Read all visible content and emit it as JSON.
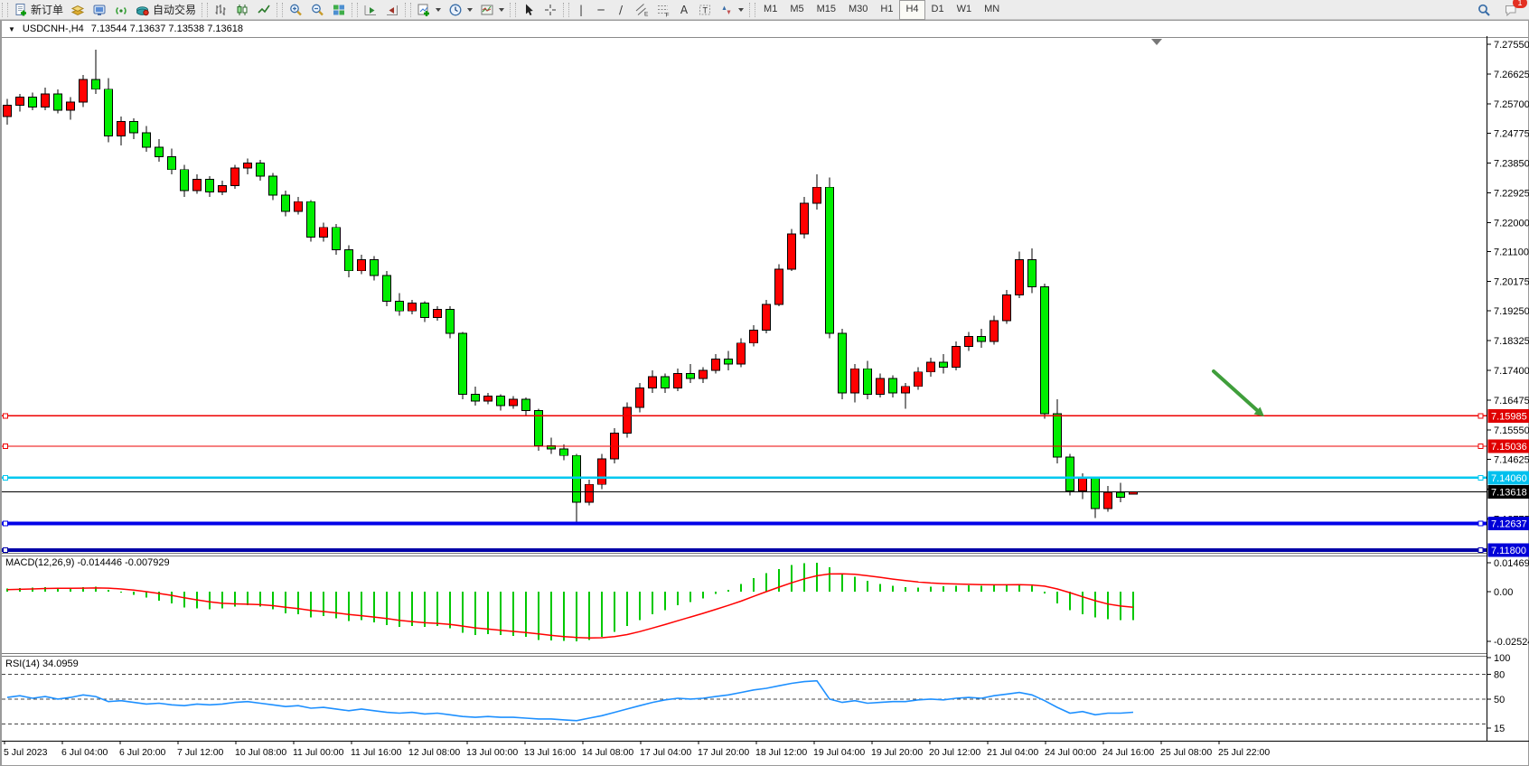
{
  "toolbar": {
    "groups": [
      {
        "items": [
          {
            "name": "new-order",
            "icon": "new-order",
            "label": "新订单"
          },
          {
            "name": "profiles",
            "icon": "profiles"
          },
          {
            "name": "terminal",
            "icon": "terminal"
          },
          {
            "name": "signals",
            "icon": "signals"
          },
          {
            "name": "autotrading",
            "icon": "autotrading",
            "label": "自动交易"
          }
        ]
      },
      {
        "items": [
          {
            "name": "bar-chart-mode",
            "icon": "bars"
          },
          {
            "name": "candlestick-mode",
            "icon": "candles"
          },
          {
            "name": "line-chart-mode",
            "icon": "linechart"
          }
        ]
      },
      {
        "items": [
          {
            "name": "zoom-in",
            "icon": "zoom-in"
          },
          {
            "name": "zoom-out",
            "icon": "zoom-out"
          },
          {
            "name": "tile-windows",
            "icon": "tile"
          }
        ]
      },
      {
        "items": [
          {
            "name": "auto-scroll",
            "icon": "autoscroll"
          },
          {
            "name": "chart-shift",
            "icon": "chartshift"
          }
        ]
      },
      {
        "items": [
          {
            "name": "new-chart",
            "icon": "new-chart",
            "caret": true
          },
          {
            "name": "periods",
            "icon": "clock",
            "caret": true
          },
          {
            "name": "templates",
            "icon": "template",
            "caret": true
          }
        ]
      },
      {
        "items": [
          {
            "name": "cursor",
            "icon": "cursor"
          },
          {
            "name": "crosshair",
            "icon": "crosshair"
          }
        ]
      },
      {
        "items": [
          {
            "name": "vertical-line",
            "glyph": "|"
          },
          {
            "name": "horizontal-line",
            "glyph": "─"
          },
          {
            "name": "trendline",
            "glyph": "/"
          },
          {
            "name": "equidistant-channel",
            "icon": "channel"
          },
          {
            "name": "fibonacci",
            "icon": "fibo"
          },
          {
            "name": "text",
            "glyph": "A"
          },
          {
            "name": "text-label",
            "icon": "label-t"
          },
          {
            "name": "arrows-shapes",
            "icon": "shapes",
            "caret": true
          }
        ]
      }
    ],
    "timeframes": [
      "M1",
      "M5",
      "M15",
      "M30",
      "H1",
      "H4",
      "D1",
      "W1",
      "MN"
    ],
    "active_timeframe": "H4",
    "right_buttons": [
      {
        "name": "search",
        "icon": "search"
      },
      {
        "name": "notifications",
        "icon": "chat",
        "badge": "1"
      }
    ]
  },
  "chart": {
    "title": {
      "symbol": "USDCNH-,H4",
      "ohlc": "7.13544 7.13637 7.13538 7.13618"
    }
  },
  "chart_data": {
    "type": "candlestick",
    "symbol": "USDCNH-,H4",
    "timeframe": "H4",
    "bull_color": "#ff0000",
    "bear_color": "#00ee00",
    "wick_color": "#000000",
    "ylim": [
      7.1172,
      7.2778
    ],
    "price_ticks": [
      "7.27550",
      "7.26625",
      "7.25700",
      "7.24775",
      "7.23850",
      "7.22925",
      "7.22000",
      "7.21100",
      "7.20175",
      "7.19250",
      "7.18325",
      "7.17400",
      "7.16475",
      "7.15550",
      "7.14625",
      "7.13700",
      "7.12775"
    ],
    "time_labels": [
      "5 Jul 2023",
      "6 Jul 04:00",
      "6 Jul 20:00",
      "7 Jul 12:00",
      "10 Jul 08:00",
      "11 Jul 00:00",
      "11 Jul 16:00",
      "12 Jul 08:00",
      "13 Jul 00:00",
      "13 Jul 16:00",
      "14 Jul 08:00",
      "17 Jul 04:00",
      "17 Jul 20:00",
      "18 Jul 12:00",
      "19 Jul 04:00",
      "19 Jul 20:00",
      "20 Jul 12:00",
      "21 Jul 04:00",
      "24 Jul 00:00",
      "24 Jul 16:00",
      "25 Jul 08:00",
      "25 Jul 22:00"
    ],
    "candles": [
      [
        7.253,
        7.2585,
        7.2505,
        7.2565
      ],
      [
        7.2565,
        7.26,
        7.2545,
        7.259
      ],
      [
        7.259,
        7.2605,
        7.255,
        7.256
      ],
      [
        7.256,
        7.262,
        7.255,
        7.26
      ],
      [
        7.26,
        7.2615,
        7.254,
        7.255
      ],
      [
        7.255,
        7.259,
        7.252,
        7.2575
      ],
      [
        7.2575,
        7.266,
        7.256,
        7.2645
      ],
      [
        7.2645,
        7.2738,
        7.26,
        7.2615
      ],
      [
        7.2615,
        7.265,
        7.245,
        7.247
      ],
      [
        7.247,
        7.253,
        7.244,
        7.2515
      ],
      [
        7.2515,
        7.2525,
        7.246,
        7.248
      ],
      [
        7.248,
        7.25,
        7.242,
        7.2435
      ],
      [
        7.2435,
        7.246,
        7.239,
        7.2405
      ],
      [
        7.2405,
        7.243,
        7.235,
        7.2365
      ],
      [
        7.2365,
        7.238,
        7.228,
        7.23
      ],
      [
        7.23,
        7.235,
        7.229,
        7.2335
      ],
      [
        7.2335,
        7.2345,
        7.228,
        7.2295
      ],
      [
        7.2295,
        7.233,
        7.2285,
        7.2315
      ],
      [
        7.2315,
        7.238,
        7.2305,
        7.237
      ],
      [
        7.237,
        7.24,
        7.235,
        7.2385
      ],
      [
        7.2385,
        7.2395,
        7.233,
        7.2345
      ],
      [
        7.2345,
        7.2355,
        7.227,
        7.2285
      ],
      [
        7.2285,
        7.23,
        7.222,
        7.2235
      ],
      [
        7.2235,
        7.228,
        7.2225,
        7.2265
      ],
      [
        7.2265,
        7.227,
        7.214,
        7.2155
      ],
      [
        7.2155,
        7.22,
        7.214,
        7.2185
      ],
      [
        7.2185,
        7.2195,
        7.21,
        7.2115
      ],
      [
        7.2115,
        7.213,
        7.203,
        7.205
      ],
      [
        7.205,
        7.21,
        7.204,
        7.2085
      ],
      [
        7.2085,
        7.2095,
        7.202,
        7.2035
      ],
      [
        7.2035,
        7.205,
        7.194,
        7.1955
      ],
      [
        7.1955,
        7.198,
        7.191,
        7.1925
      ],
      [
        7.1925,
        7.196,
        7.1915,
        7.195
      ],
      [
        7.195,
        7.1955,
        7.189,
        7.1905
      ],
      [
        7.1905,
        7.194,
        7.1895,
        7.193
      ],
      [
        7.193,
        7.194,
        7.184,
        7.1855
      ],
      [
        7.1855,
        7.186,
        7.165,
        7.1665
      ],
      [
        7.1665,
        7.169,
        7.163,
        7.1645
      ],
      [
        7.1645,
        7.167,
        7.1635,
        7.166
      ],
      [
        7.166,
        7.1665,
        7.1615,
        7.163
      ],
      [
        7.163,
        7.166,
        7.162,
        7.165
      ],
      [
        7.165,
        7.1655,
        7.16,
        7.1615
      ],
      [
        7.1615,
        7.162,
        7.149,
        7.1505
      ],
      [
        7.1505,
        7.153,
        7.148,
        7.1495
      ],
      [
        7.1495,
        7.151,
        7.146,
        7.1475
      ],
      [
        7.1475,
        7.148,
        7.1268,
        7.133
      ],
      [
        7.133,
        7.14,
        7.132,
        7.1385
      ],
      [
        7.1385,
        7.148,
        7.137,
        7.1465
      ],
      [
        7.1465,
        7.156,
        7.145,
        7.1545
      ],
      [
        7.1545,
        7.164,
        7.153,
        7.1625
      ],
      [
        7.1625,
        7.17,
        7.161,
        7.1685
      ],
      [
        7.1685,
        7.174,
        7.167,
        7.172
      ],
      [
        7.172,
        7.173,
        7.167,
        7.1685
      ],
      [
        7.1685,
        7.1745,
        7.1675,
        7.173
      ],
      [
        7.173,
        7.176,
        7.17,
        7.1715
      ],
      [
        7.1715,
        7.175,
        7.17,
        7.174
      ],
      [
        7.174,
        7.179,
        7.173,
        7.1775
      ],
      [
        7.1775,
        7.18,
        7.174,
        7.176
      ],
      [
        7.176,
        7.184,
        7.175,
        7.1825
      ],
      [
        7.1825,
        7.188,
        7.1815,
        7.1865
      ],
      [
        7.1865,
        7.196,
        7.1855,
        7.1945
      ],
      [
        7.1945,
        7.207,
        7.194,
        7.2055
      ],
      [
        7.2055,
        7.218,
        7.205,
        7.2165
      ],
      [
        7.2165,
        7.228,
        7.215,
        7.226
      ],
      [
        7.226,
        7.235,
        7.224,
        7.231
      ],
      [
        7.231,
        7.234,
        7.184,
        7.1855
      ],
      [
        7.1855,
        7.187,
        7.165,
        7.167
      ],
      [
        7.167,
        7.176,
        7.164,
        7.1745
      ],
      [
        7.1745,
        7.177,
        7.165,
        7.1665
      ],
      [
        7.1665,
        7.173,
        7.1655,
        7.1715
      ],
      [
        7.1715,
        7.1725,
        7.1655,
        7.167
      ],
      [
        7.167,
        7.17,
        7.162,
        7.169
      ],
      [
        7.169,
        7.175,
        7.168,
        7.1735
      ],
      [
        7.1735,
        7.178,
        7.172,
        7.1765
      ],
      [
        7.1765,
        7.179,
        7.173,
        7.175
      ],
      [
        7.175,
        7.183,
        7.174,
        7.1815
      ],
      [
        7.1815,
        7.186,
        7.18,
        7.1845
      ],
      [
        7.1845,
        7.187,
        7.181,
        7.183
      ],
      [
        7.183,
        7.191,
        7.182,
        7.1895
      ],
      [
        7.1895,
        7.199,
        7.1885,
        7.1975
      ],
      [
        7.1975,
        7.211,
        7.1965,
        7.2085
      ],
      [
        7.2085,
        7.212,
        7.198,
        7.2
      ],
      [
        7.2,
        7.201,
        7.159,
        7.1605
      ],
      [
        7.1605,
        7.165,
        7.145,
        7.147
      ],
      [
        7.147,
        7.148,
        7.135,
        7.1365
      ],
      [
        7.1365,
        7.142,
        7.134,
        7.1405
      ],
      [
        7.1405,
        7.141,
        7.128,
        7.131
      ],
      [
        7.131,
        7.138,
        7.13,
        7.136
      ],
      [
        7.136,
        7.139,
        7.133,
        7.1345
      ],
      [
        7.13544,
        7.13637,
        7.13538,
        7.13618
      ]
    ],
    "hlines": [
      {
        "price": 7.15985,
        "label": "7.15985",
        "color": "#ee0000",
        "tag": "#e00000",
        "width": 1.2
      },
      {
        "price": 7.15036,
        "label": "7.15036",
        "color": "#ee0000",
        "tag": "#e00000",
        "width": 1.2
      },
      {
        "price": 7.1406,
        "label": "7.14060",
        "color": "#00c8f0",
        "tag": "#00c0ee",
        "width": 2.5
      },
      {
        "price": 7.12637,
        "label": "7.12637",
        "color": "#0000e8",
        "tag": "#0000d8",
        "width": 4
      },
      {
        "price": 7.118,
        "label": "7.11800",
        "color": "#0000a8",
        "tag": "#0000d8",
        "width": 4
      }
    ],
    "current_price": {
      "value": 7.13618,
      "label": "7.13618",
      "color": "#000000"
    },
    "arrow_annotation": {
      "color": "#3f9e3b"
    },
    "macd": {
      "label": "MACD(12,26,9) -0.014446 -0.007929",
      "main_value": -0.014446,
      "signal_value": -0.007929,
      "scale_ticks": [
        "0.014691",
        "0.00",
        "-0.02524"
      ],
      "hist_color": "#00c800",
      "signal_color": "#ff0000",
      "histogram": [
        0.0015,
        0.0018,
        0.002,
        0.0022,
        0.0018,
        0.0015,
        0.0022,
        0.0025,
        0.001,
        -0.0005,
        -0.0015,
        -0.003,
        -0.0045,
        -0.006,
        -0.008,
        -0.0085,
        -0.009,
        -0.0085,
        -0.0075,
        -0.007,
        -0.0075,
        -0.009,
        -0.011,
        -0.0115,
        -0.013,
        -0.0125,
        -0.0135,
        -0.015,
        -0.0145,
        -0.0155,
        -0.017,
        -0.018,
        -0.0175,
        -0.018,
        -0.0175,
        -0.0185,
        -0.021,
        -0.022,
        -0.0215,
        -0.022,
        -0.0225,
        -0.023,
        -0.0245,
        -0.0248,
        -0.025,
        -0.02524,
        -0.0245,
        -0.023,
        -0.0205,
        -0.0175,
        -0.0145,
        -0.0115,
        -0.0095,
        -0.007,
        -0.0052,
        -0.0035,
        -0.0012,
        0.001,
        0.004,
        0.007,
        0.0095,
        0.0115,
        0.0135,
        0.0145,
        0.014691,
        0.0125,
        0.0095,
        0.0075,
        0.0055,
        0.004,
        0.003,
        0.0022,
        0.002,
        0.0025,
        0.0028,
        0.003,
        0.0032,
        0.003,
        0.0032,
        0.0035,
        0.004,
        0.003,
        -0.001,
        -0.006,
        -0.0095,
        -0.0115,
        -0.013,
        -0.014,
        -0.0145,
        -0.014446
      ],
      "signal": [
        0.001,
        0.0012,
        0.0014,
        0.0016,
        0.0017,
        0.0017,
        0.0018,
        0.0019,
        0.0018,
        0.0014,
        0.0008,
        0.0,
        -0.0009,
        -0.0019,
        -0.0031,
        -0.0042,
        -0.0052,
        -0.0059,
        -0.0062,
        -0.0064,
        -0.0066,
        -0.0071,
        -0.0079,
        -0.0086,
        -0.0095,
        -0.0101,
        -0.0108,
        -0.0116,
        -0.0122,
        -0.0129,
        -0.0137,
        -0.0146,
        -0.0152,
        -0.0158,
        -0.0161,
        -0.0166,
        -0.0175,
        -0.0184,
        -0.019,
        -0.0196,
        -0.0202,
        -0.0208,
        -0.0215,
        -0.0222,
        -0.0228,
        -0.0233,
        -0.0235,
        -0.0234,
        -0.0228,
        -0.0218,
        -0.0203,
        -0.0185,
        -0.0167,
        -0.0148,
        -0.0129,
        -0.011,
        -0.009,
        -0.007,
        -0.0048,
        -0.0024,
        0.0,
        0.0023,
        0.0045,
        0.0065,
        0.0081,
        0.009,
        0.0091,
        0.0088,
        0.0081,
        0.0073,
        0.0064,
        0.0056,
        0.0049,
        0.0044,
        0.0041,
        0.0039,
        0.0037,
        0.0036,
        0.0035,
        0.0035,
        0.0036,
        0.0034,
        0.0028,
        0.0014,
        -0.0005,
        -0.0026,
        -0.0046,
        -0.0063,
        -0.0073,
        -0.007929
      ]
    },
    "rsi": {
      "label": "RSI(14) 34.0959",
      "value": 34.0959,
      "color": "#1e90ff",
      "levels": [
        80,
        50,
        20
      ],
      "scale_ticks": [
        {
          "v": 100,
          "t": "100"
        },
        {
          "v": 80,
          "t": "80"
        },
        {
          "v": 50,
          "t": "50"
        },
        {
          "v": 15,
          "t": "15"
        }
      ],
      "values": [
        52,
        54,
        51,
        53,
        50,
        52,
        55,
        53,
        47,
        48,
        46,
        44,
        45,
        43,
        42,
        44,
        43,
        44,
        46,
        47,
        45,
        43,
        41,
        42,
        39,
        40,
        38,
        36,
        38,
        36,
        34,
        33,
        34,
        32,
        33,
        31,
        29,
        28,
        29,
        28,
        28,
        27,
        26,
        26,
        25,
        24,
        27,
        30,
        34,
        38,
        42,
        46,
        49,
        51,
        50,
        51,
        53,
        55,
        58,
        61,
        63,
        66,
        69,
        71,
        72,
        50,
        46,
        48,
        45,
        46,
        47,
        47,
        49,
        50,
        49,
        51,
        52,
        51,
        54,
        56,
        58,
        55,
        48,
        40,
        33,
        35,
        31,
        33,
        33,
        34.1
      ]
    }
  }
}
